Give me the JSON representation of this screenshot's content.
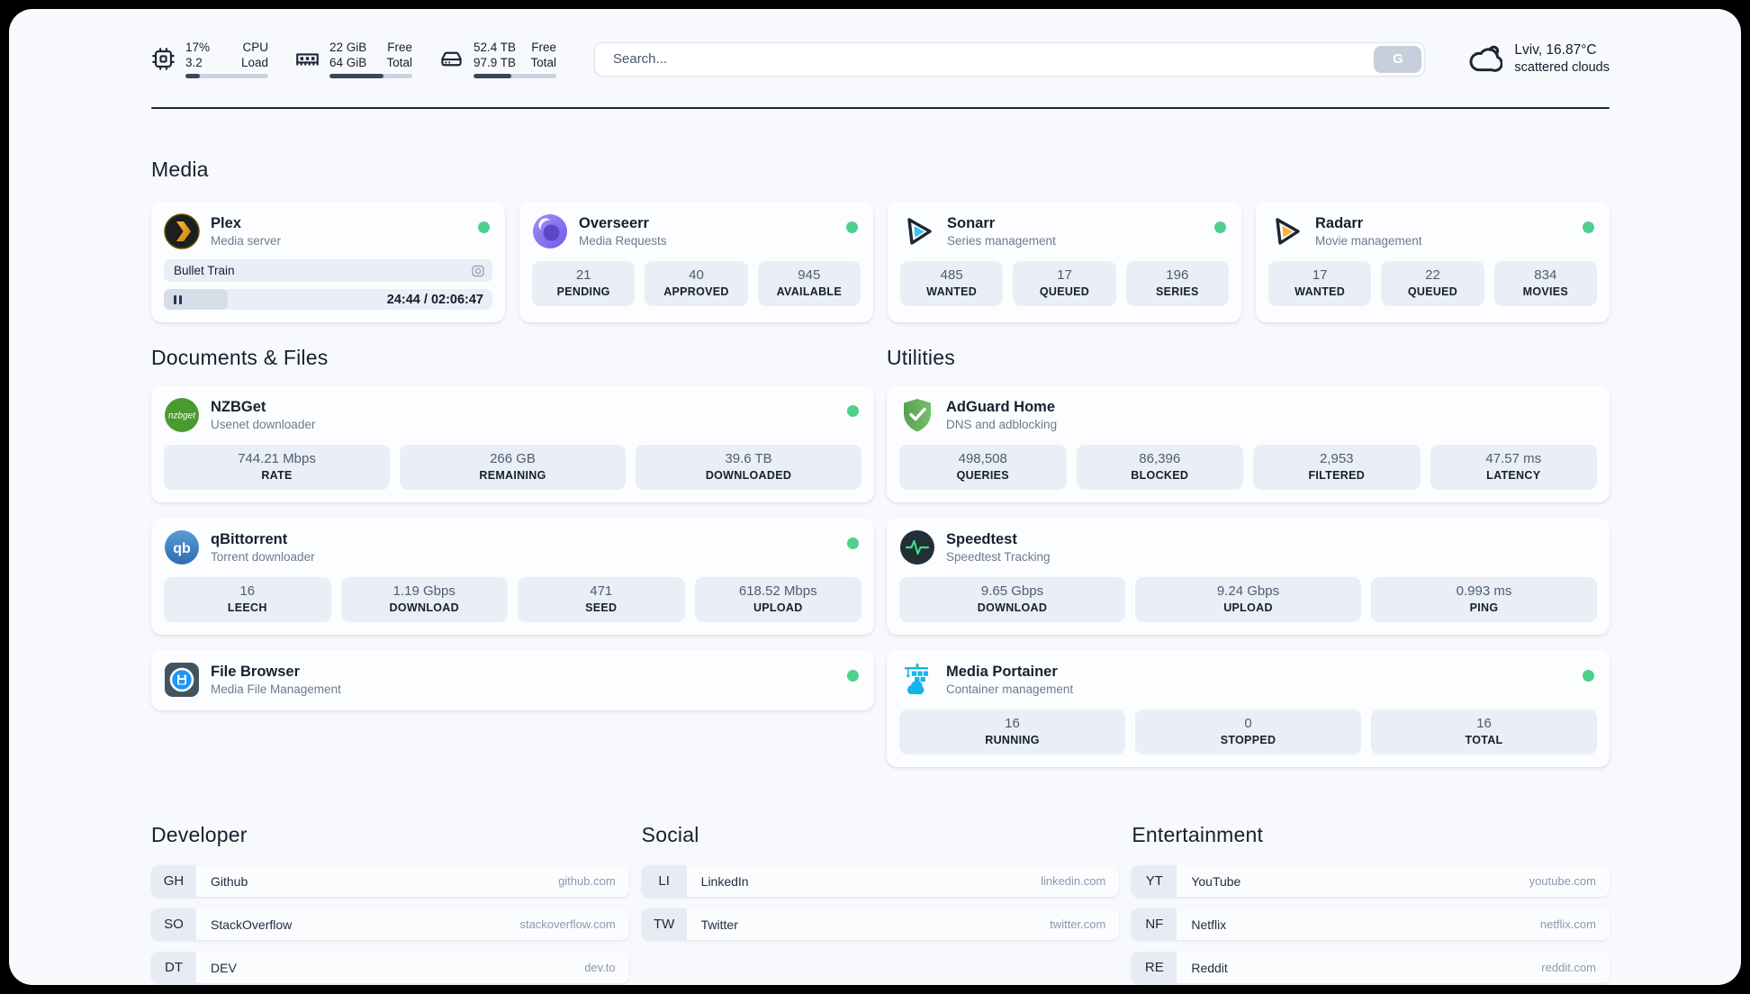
{
  "topbar": {
    "cpu": {
      "icon": "cpu-chip-icon",
      "value_top": "17%",
      "value_bottom": "3.2",
      "label_top": "CPU",
      "label_bottom": "Load",
      "progress_pct": 17
    },
    "memory": {
      "icon": "ram-icon",
      "value_top": "22 GiB",
      "value_bottom": "64 GiB",
      "label_top": "Free",
      "label_bottom": "Total",
      "progress_pct": 65
    },
    "disk": {
      "icon": "hard-drive-icon",
      "value_top": "52.4 TB",
      "value_bottom": "97.9 TB",
      "label_top": "Free",
      "label_bottom": "Total",
      "progress_pct": 46
    },
    "search": {
      "placeholder": "Search...",
      "button_label": "G"
    },
    "weather": {
      "icon": "cloud-icon",
      "location_temp": "Lviv, 16.87°C",
      "condition": "scattered clouds"
    }
  },
  "sections": {
    "media": {
      "title": "Media",
      "services": [
        {
          "name": "Plex",
          "desc": "Media server",
          "icon": "plex-icon",
          "status": "online",
          "now_playing": {
            "title": "Bullet Train",
            "time_display": "24:44 / 02:06:47",
            "progress_pct": 19.5
          }
        },
        {
          "name": "Overseerr",
          "desc": "Media Requests",
          "icon": "overseerr-icon",
          "status": "online",
          "stats": [
            {
              "value": "21",
              "label": "PENDING"
            },
            {
              "value": "40",
              "label": "APPROVED"
            },
            {
              "value": "945",
              "label": "AVAILABLE"
            }
          ]
        },
        {
          "name": "Sonarr",
          "desc": "Series management",
          "icon": "sonarr-icon",
          "status": "online",
          "stats": [
            {
              "value": "485",
              "label": "WANTED"
            },
            {
              "value": "17",
              "label": "QUEUED"
            },
            {
              "value": "196",
              "label": "SERIES"
            }
          ]
        },
        {
          "name": "Radarr",
          "desc": "Movie management",
          "icon": "radarr-icon",
          "status": "online",
          "stats": [
            {
              "value": "17",
              "label": "WANTED"
            },
            {
              "value": "22",
              "label": "QUEUED"
            },
            {
              "value": "834",
              "label": "MOVIES"
            }
          ]
        }
      ]
    },
    "documents": {
      "title": "Documents & Files",
      "services": [
        {
          "name": "NZBGet",
          "desc": "Usenet downloader",
          "icon": "nzbget-icon",
          "status": "online",
          "stats": [
            {
              "value": "744.21 Mbps",
              "label": "RATE"
            },
            {
              "value": "266 GB",
              "label": "REMAINING"
            },
            {
              "value": "39.6 TB",
              "label": "DOWNLOADED"
            }
          ]
        },
        {
          "name": "qBittorrent",
          "desc": "Torrent downloader",
          "icon": "qbittorrent-icon",
          "status": "online",
          "stats": [
            {
              "value": "16",
              "label": "LEECH"
            },
            {
              "value": "1.19 Gbps",
              "label": "DOWNLOAD"
            },
            {
              "value": "471",
              "label": "SEED"
            },
            {
              "value": "618.52 Mbps",
              "label": "UPLOAD"
            }
          ]
        },
        {
          "name": "File Browser",
          "desc": "Media File Management",
          "icon": "filebrowser-icon",
          "status": "online",
          "stats": []
        }
      ]
    },
    "utilities": {
      "title": "Utilities",
      "services": [
        {
          "name": "AdGuard Home",
          "desc": "DNS and adblocking",
          "icon": "adguard-icon",
          "status": "none",
          "stats": [
            {
              "value": "498,508",
              "label": "QUERIES"
            },
            {
              "value": "86,396",
              "label": "BLOCKED"
            },
            {
              "value": "2,953",
              "label": "FILTERED"
            },
            {
              "value": "47.57 ms",
              "label": "LATENCY"
            }
          ]
        },
        {
          "name": "Speedtest",
          "desc": "Speedtest Tracking",
          "icon": "speedtest-icon",
          "status": "none",
          "stats": [
            {
              "value": "9.65 Gbps",
              "label": "DOWNLOAD"
            },
            {
              "value": "9.24 Gbps",
              "label": "UPLOAD"
            },
            {
              "value": "0.993 ms",
              "label": "PING"
            }
          ]
        },
        {
          "name": "Media Portainer",
          "desc": "Container management",
          "icon": "portainer-icon",
          "status": "online",
          "stats": [
            {
              "value": "16",
              "label": "RUNNING"
            },
            {
              "value": "0",
              "label": "STOPPED"
            },
            {
              "value": "16",
              "label": "TOTAL"
            }
          ]
        }
      ]
    },
    "bookmarks": [
      {
        "title": "Developer",
        "links": [
          {
            "abbr": "GH",
            "name": "Github",
            "url": "github.com"
          },
          {
            "abbr": "SO",
            "name": "StackOverflow",
            "url": "stackoverflow.com"
          },
          {
            "abbr": "DT",
            "name": "DEV",
            "url": "dev.to"
          }
        ]
      },
      {
        "title": "Social",
        "links": [
          {
            "abbr": "LI",
            "name": "LinkedIn",
            "url": "linkedin.com"
          },
          {
            "abbr": "TW",
            "name": "Twitter",
            "url": "twitter.com"
          }
        ]
      },
      {
        "title": "Entertainment",
        "links": [
          {
            "abbr": "YT",
            "name": "YouTube",
            "url": "youtube.com"
          },
          {
            "abbr": "NF",
            "name": "Netflix",
            "url": "netflix.com"
          },
          {
            "abbr": "RE",
            "name": "Reddit",
            "url": "reddit.com"
          }
        ]
      }
    ]
  },
  "colors": {
    "status_online": "#4fd08c",
    "accent_dark": "#1b2638",
    "stat_box_bg": "#e9eef7",
    "page_bg": "#f7f9fc"
  }
}
